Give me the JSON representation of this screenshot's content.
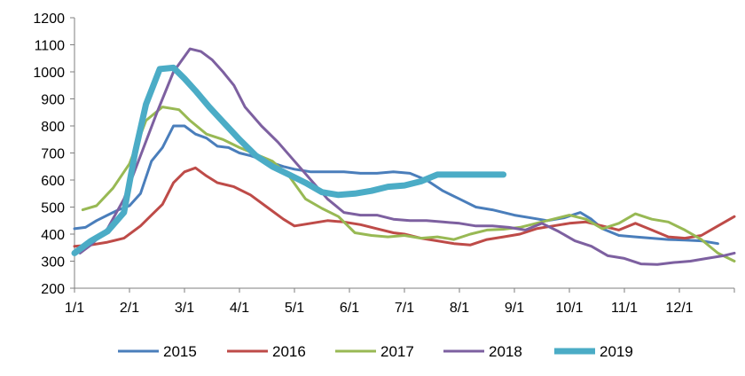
{
  "chart_data": {
    "type": "line",
    "title": "",
    "xlabel": "",
    "ylabel": "",
    "ylim": [
      200,
      1200
    ],
    "yticks": [
      200,
      300,
      400,
      500,
      600,
      700,
      800,
      900,
      1000,
      1100,
      1200
    ],
    "xticks": [
      "1/1",
      "2/1",
      "3/1",
      "4/1",
      "5/1",
      "6/1",
      "7/1",
      "8/1",
      "9/1",
      "10/1",
      "11/1",
      "12/1"
    ],
    "x_unit": "month index (0 = 1/1, 12 = end of year)",
    "grid": false,
    "legend_position": "bottom",
    "series": [
      {
        "name": "2015",
        "color": "#4a7ebb",
        "width": 3,
        "x": [
          0,
          0.2,
          0.4,
          0.6,
          0.8,
          1.0,
          1.2,
          1.4,
          1.6,
          1.8,
          2.0,
          2.2,
          2.4,
          2.6,
          2.8,
          3.0,
          3.2,
          3.5,
          3.8,
          4.0,
          4.3,
          4.6,
          4.9,
          5.2,
          5.5,
          5.8,
          6.1,
          6.4,
          6.7,
          7.0,
          7.3,
          7.6,
          8.0,
          8.3,
          8.6,
          8.9,
          9.2,
          9.4,
          9.6,
          9.9,
          10.2,
          10.5,
          10.8,
          11.1,
          11.4,
          11.7
        ],
        "values": [
          420,
          425,
          450,
          470,
          490,
          505,
          550,
          670,
          720,
          800,
          800,
          770,
          755,
          725,
          720,
          700,
          690,
          670,
          650,
          640,
          630,
          630,
          630,
          625,
          625,
          630,
          625,
          600,
          560,
          530,
          500,
          490,
          470,
          460,
          450,
          460,
          480,
          455,
          420,
          395,
          390,
          385,
          380,
          378,
          375,
          365
        ]
      },
      {
        "name": "2016",
        "color": "#be4b48",
        "width": 3,
        "x": [
          0,
          0.3,
          0.6,
          0.9,
          1.2,
          1.4,
          1.6,
          1.8,
          2.0,
          2.2,
          2.4,
          2.6,
          2.9,
          3.2,
          3.5,
          3.8,
          4.0,
          4.3,
          4.6,
          4.9,
          5.2,
          5.5,
          5.8,
          6.0,
          6.3,
          6.6,
          6.9,
          7.2,
          7.5,
          7.8,
          8.1,
          8.4,
          8.7,
          9.0,
          9.3,
          9.6,
          9.9,
          10.2,
          10.5,
          10.8,
          11.1,
          11.4,
          11.7,
          12.0
        ],
        "values": [
          355,
          360,
          370,
          385,
          430,
          470,
          510,
          590,
          630,
          645,
          615,
          590,
          575,
          545,
          500,
          455,
          430,
          440,
          450,
          445,
          435,
          420,
          405,
          400,
          385,
          375,
          365,
          360,
          380,
          390,
          400,
          420,
          430,
          440,
          445,
          430,
          415,
          440,
          415,
          390,
          385,
          395,
          430,
          465
        ]
      },
      {
        "name": "2017",
        "color": "#98b954",
        "width": 3,
        "x": [
          0.15,
          0.4,
          0.7,
          1.0,
          1.3,
          1.6,
          1.9,
          2.1,
          2.4,
          2.7,
          3.0,
          3.3,
          3.6,
          3.9,
          4.2,
          4.5,
          4.8,
          5.1,
          5.4,
          5.7,
          6.0,
          6.3,
          6.6,
          6.9,
          7.2,
          7.5,
          7.8,
          8.1,
          8.4,
          8.7,
          9.0,
          9.3,
          9.6,
          9.9,
          10.2,
          10.5,
          10.8,
          11.1,
          11.4,
          11.7,
          12.0
        ],
        "values": [
          490,
          505,
          570,
          660,
          820,
          870,
          860,
          820,
          770,
          750,
          720,
          695,
          670,
          615,
          530,
          495,
          465,
          405,
          395,
          390,
          395,
          385,
          390,
          380,
          400,
          415,
          418,
          425,
          440,
          455,
          470,
          455,
          420,
          440,
          475,
          455,
          445,
          415,
          380,
          330,
          300
        ]
      },
      {
        "name": "2018",
        "color": "#7d60a0",
        "width": 3,
        "x": [
          0.1,
          0.3,
          0.6,
          0.9,
          1.2,
          1.5,
          1.8,
          2.1,
          2.3,
          2.5,
          2.7,
          2.9,
          3.1,
          3.4,
          3.7,
          4.0,
          4.3,
          4.6,
          4.9,
          5.2,
          5.5,
          5.8,
          6.1,
          6.4,
          6.7,
          7.0,
          7.3,
          7.6,
          7.9,
          8.2,
          8.5,
          8.8,
          9.1,
          9.4,
          9.7,
          10.0,
          10.3,
          10.6,
          10.9,
          11.2,
          11.5,
          11.8,
          12.0
        ],
        "values": [
          330,
          360,
          420,
          530,
          690,
          850,
          1000,
          1085,
          1075,
          1045,
          1000,
          950,
          870,
          800,
          740,
          670,
          600,
          530,
          480,
          470,
          470,
          455,
          450,
          450,
          445,
          440,
          430,
          430,
          425,
          415,
          440,
          410,
          375,
          355,
          320,
          310,
          290,
          288,
          295,
          300,
          310,
          320,
          330
        ]
      },
      {
        "name": "2019",
        "color": "#4bacc6",
        "width": 7,
        "x": [
          0,
          0.3,
          0.6,
          0.9,
          1.1,
          1.3,
          1.55,
          1.8,
          2.0,
          2.2,
          2.45,
          2.7,
          3.0,
          3.3,
          3.6,
          3.9,
          4.2,
          4.5,
          4.8,
          5.1,
          5.4,
          5.7,
          6.0,
          6.3,
          6.6,
          6.9,
          7.2,
          7.5,
          7.8
        ],
        "values": [
          330,
          375,
          410,
          480,
          700,
          880,
          1010,
          1015,
          975,
          930,
          870,
          815,
          750,
          690,
          650,
          620,
          590,
          555,
          545,
          550,
          560,
          575,
          580,
          595,
          620,
          620,
          620,
          620,
          620
        ]
      }
    ]
  }
}
